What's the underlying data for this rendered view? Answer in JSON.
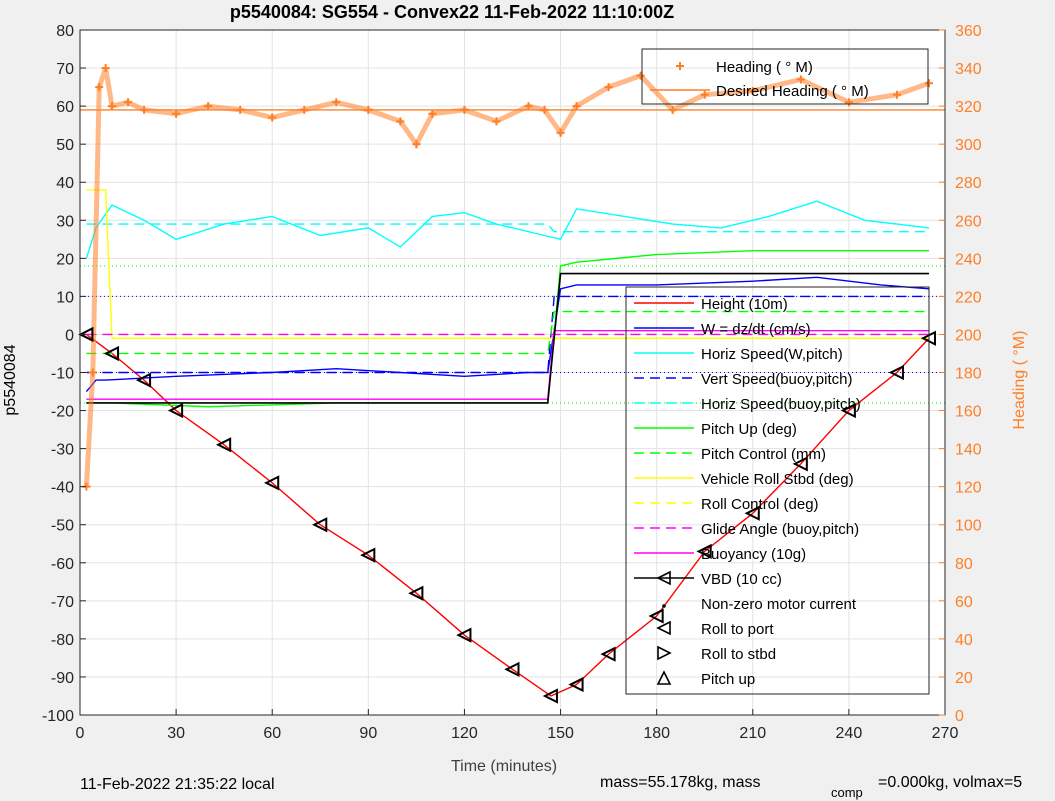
{
  "figure": {
    "title": "p5540084: SG554 - Convex22 11-Feb-2022 11:10:00Z",
    "footer_left": "11-Feb-2022 21:35:22 local",
    "footer_right": "mass=55.178kg, mass",
    "footer_comp": "comp",
    "footer_right2": "=0.000kg, volmax=5"
  },
  "colors": {
    "height": "#ff0000",
    "w": "#0000ff",
    "horiz": "#00ffff",
    "pitch": "#00ff00",
    "roll": "#ffff00",
    "glide": "#ff00ff",
    "vbd": "#000000",
    "heading": "#ff7f27",
    "grid": "#e3e3e3"
  },
  "chart_data": {
    "type": "line",
    "xlabel": "Time (minutes)",
    "ylabel": "p5540084",
    "y2label": "Heading (  °M)",
    "xlim": [
      0,
      270
    ],
    "ylim": [
      -100,
      80
    ],
    "y2lim": [
      0,
      360
    ],
    "xticks": [
      0,
      30,
      60,
      90,
      120,
      150,
      180,
      210,
      240,
      270
    ],
    "yticks": [
      -100,
      -90,
      -80,
      -70,
      -60,
      -50,
      -40,
      -30,
      -20,
      -10,
      0,
      10,
      20,
      30,
      40,
      50,
      60,
      70,
      80
    ],
    "y2ticks": [
      0,
      20,
      40,
      60,
      80,
      100,
      120,
      140,
      160,
      180,
      200,
      220,
      240,
      260,
      280,
      300,
      320,
      340,
      360
    ],
    "grid": true,
    "legend_heading": {
      "location": "top-right",
      "entries": [
        {
          "label": "Heading (  ° M)",
          "style": "plus",
          "color": "#ff7f27"
        },
        {
          "label": "Desired Heading (  ° M)",
          "style": "line",
          "color": "#ff7f27"
        }
      ]
    },
    "legend_main": {
      "location": "bottom-right",
      "entries": [
        {
          "label": "Height (10m)",
          "style": "line",
          "color": "#ff0000"
        },
        {
          "label": "W = dz/dt (cm/s)",
          "style": "line",
          "color": "#0000ff"
        },
        {
          "label": "Horiz Speed(W,pitch)",
          "style": "line",
          "color": "#00ffff"
        },
        {
          "label": "Vert Speed(buoy,pitch)",
          "style": "dash",
          "color": "#0000ff"
        },
        {
          "label": "Horiz Speed(buoy,pitch)",
          "style": "dash",
          "color": "#00ffff"
        },
        {
          "label": "Pitch Up (deg)",
          "style": "line",
          "color": "#00ff00"
        },
        {
          "label": "Pitch Control (mm)",
          "style": "dash",
          "color": "#00ff00"
        },
        {
          "label": "Vehicle Roll Stbd (deg)",
          "style": "line",
          "color": "#ffff00"
        },
        {
          "label": "Roll Control (deg)",
          "style": "dash",
          "color": "#ffff00"
        },
        {
          "label": "Glide Angle (buoy,pitch)",
          "style": "dash",
          "color": "#ff00ff"
        },
        {
          "label": "Buoyancy (10g)",
          "style": "line",
          "color": "#ff00ff"
        },
        {
          "label": "VBD (10 cc)",
          "style": "line-marker",
          "color": "#000000"
        },
        {
          "label": "Non-zero motor current",
          "style": "dot",
          "color": "#000000"
        },
        {
          "label": "Roll to port",
          "style": "tri-left",
          "color": "#000000"
        },
        {
          "label": "Roll to stbd",
          "style": "tri-right",
          "color": "#000000"
        },
        {
          "label": "Pitch up",
          "style": "tri-up",
          "color": "#000000"
        }
      ]
    },
    "series": [
      {
        "name": "Height (10m)",
        "axis": "left",
        "x": [
          0,
          2,
          10,
          20,
          30,
          45,
          60,
          75,
          90,
          105,
          120,
          135,
          147,
          155,
          165,
          180,
          195,
          210,
          225,
          240,
          255,
          265
        ],
        "y": [
          0,
          0,
          -5,
          -12,
          -20,
          -29,
          -39,
          -50,
          -58,
          -68,
          -79,
          -88,
          -95,
          -92,
          -84,
          -74,
          -57,
          -47,
          -34,
          -20,
          -10,
          -1
        ]
      },
      {
        "name": "W = dz/dt (cm/s)",
        "axis": "left",
        "x": [
          2,
          5,
          8,
          30,
          60,
          80,
          100,
          120,
          140,
          146,
          150,
          155,
          180,
          210,
          230,
          250,
          265
        ],
        "y": [
          -15,
          -12,
          -12,
          -11,
          -10,
          -9,
          -10,
          -11,
          -10,
          -10,
          12,
          13,
          13,
          14,
          15,
          13,
          12
        ]
      },
      {
        "name": "Horiz Speed(W,pitch)",
        "axis": "left",
        "x": [
          2,
          5,
          10,
          20,
          30,
          45,
          60,
          75,
          90,
          100,
          110,
          120,
          130,
          145,
          150,
          155,
          170,
          185,
          200,
          215,
          230,
          245,
          255,
          265
        ],
        "y": [
          20,
          28,
          34,
          30,
          25,
          29,
          31,
          26,
          28,
          23,
          31,
          32,
          29,
          26,
          25,
          33,
          31,
          29,
          28,
          31,
          35,
          30,
          29,
          28
        ]
      },
      {
        "name": "Vert Speed(buoy,pitch)",
        "axis": "left",
        "x": [
          2,
          146,
          148,
          265
        ],
        "y": [
          -10,
          -10,
          10,
          10
        ]
      },
      {
        "name": "Horiz Speed(buoy,pitch)",
        "axis": "left",
        "x": [
          2,
          146,
          148,
          265
        ],
        "y": [
          29,
          29,
          27,
          27
        ]
      },
      {
        "name": "Pitch Up (deg)",
        "axis": "left",
        "x": [
          2,
          10,
          40,
          80,
          120,
          146,
          150,
          155,
          180,
          210,
          240,
          265
        ],
        "y": [
          -18,
          -18,
          -19,
          -18,
          -18,
          -18,
          18,
          19,
          21,
          22,
          22,
          22
        ]
      },
      {
        "name": "Pitch Control (mm)",
        "axis": "left",
        "x": [
          2,
          146,
          148,
          265
        ],
        "y": [
          -5,
          -5,
          6,
          6
        ]
      },
      {
        "name": "Vehicle Roll Stbd (deg)",
        "axis": "left",
        "x": [
          2,
          8,
          10,
          146,
          150,
          265
        ],
        "y": [
          38,
          38,
          -1,
          -1,
          -1,
          -1
        ]
      },
      {
        "name": "Roll Control (deg)",
        "axis": "left",
        "x": [
          2,
          265
        ],
        "y": [
          0,
          0
        ]
      },
      {
        "name": "Glide Angle (buoy,pitch)",
        "axis": "left",
        "x": [
          2,
          265
        ],
        "y": [
          0,
          0
        ]
      },
      {
        "name": "Buoyancy (10g)",
        "axis": "left",
        "x": [
          2,
          146,
          148,
          265
        ],
        "y": [
          -17,
          -17,
          1,
          1
        ]
      },
      {
        "name": "VBD (10 cc)",
        "axis": "left",
        "x": [
          2,
          146,
          150,
          265
        ],
        "y": [
          -18,
          -18,
          16,
          16
        ]
      },
      {
        "name": "Heading (  ° M)",
        "axis": "right",
        "x": [
          2,
          4,
          6,
          8,
          10,
          15,
          20,
          30,
          40,
          50,
          60,
          70,
          80,
          90,
          100,
          105,
          110,
          120,
          130,
          140,
          145,
          150,
          155,
          165,
          175,
          185,
          195,
          210,
          225,
          240,
          255,
          265
        ],
        "y": [
          120,
          180,
          330,
          340,
          320,
          322,
          318,
          316,
          320,
          318,
          314,
          318,
          322,
          318,
          312,
          300,
          316,
          318,
          312,
          320,
          318,
          306,
          320,
          330,
          336,
          318,
          326,
          328,
          334,
          322,
          326,
          332
        ]
      },
      {
        "name": "Desired Heading (  ° M)",
        "axis": "right",
        "x": [
          0,
          270
        ],
        "y": [
          318,
          318
        ]
      }
    ],
    "reference_levels": {
      "blue_dotted": [
        10,
        -10
      ],
      "green_dotted": [
        18,
        -18
      ]
    }
  }
}
